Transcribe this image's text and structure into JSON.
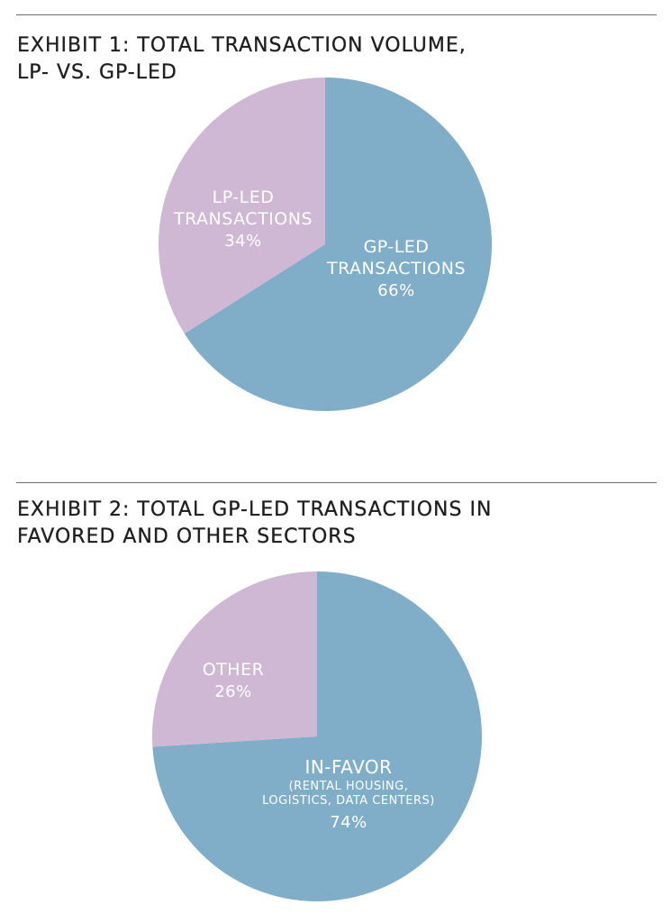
{
  "exhibit1": {
    "title_line1": "EXHIBIT 1: TOTAL TRANSACTION VOLUME,",
    "title_line2": "LP- VS. GP-LED"
  },
  "exhibit2": {
    "title_line1": "EXHIBIT 2: TOTAL GP-LED TRANSACTIONS IN",
    "title_line2": "FAVORED AND OTHER SECTORS"
  },
  "chart_data": [
    {
      "type": "pie",
      "title": "EXHIBIT 1: TOTAL TRANSACTION VOLUME, LP- VS. GP-LED",
      "start_angle_deg": 0,
      "direction": "clockwise",
      "slices": [
        {
          "name": "GP-LED TRANSACTIONS",
          "label_lines": [
            "GP-LED",
            "TRANSACTIONS"
          ],
          "value": 66,
          "value_label": "66%",
          "color": "#80adc7"
        },
        {
          "name": "LP-LED TRANSACTIONS",
          "label_lines": [
            "LP-LED",
            "TRANSACTIONS"
          ],
          "value": 34,
          "value_label": "34%",
          "color": "#cfb8d3"
        }
      ]
    },
    {
      "type": "pie",
      "title": "EXHIBIT 2: TOTAL GP-LED TRANSACTIONS IN FAVORED AND OTHER SECTORS",
      "start_angle_deg": 0,
      "direction": "clockwise",
      "slices": [
        {
          "name": "IN-FAVOR",
          "label_lines": [
            "IN-FAVOR"
          ],
          "sub_lines": [
            "(RENTAL HOUSING,",
            "LOGISTICS, DATA CENTERS)"
          ],
          "value": 74,
          "value_label": "74%",
          "color": "#80adc7"
        },
        {
          "name": "OTHER",
          "label_lines": [
            "OTHER"
          ],
          "value": 26,
          "value_label": "26%",
          "color": "#cfb8d3"
        }
      ]
    }
  ]
}
